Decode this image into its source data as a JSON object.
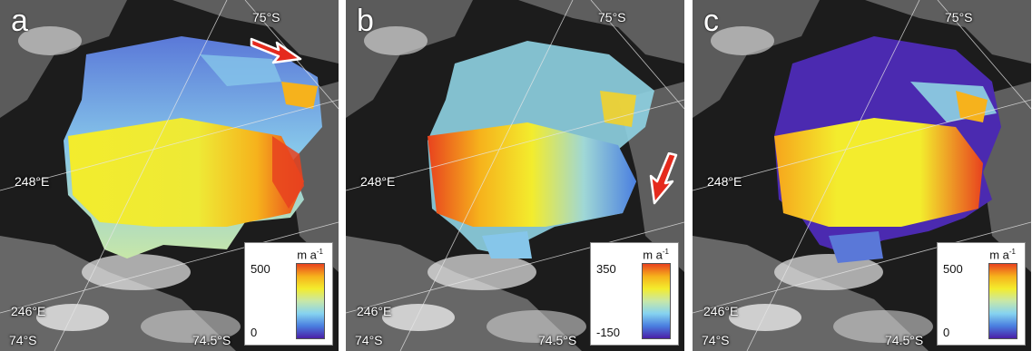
{
  "panels": [
    {
      "letter": "a",
      "lat_top": "75°S",
      "lon_mid": "248°E",
      "lon_low": "246°E",
      "lat_bottom_left": "74°S",
      "lat_bottom_right": "74.5°S",
      "legend": {
        "unit_base": "m a",
        "unit_exp": "-1",
        "max": "500",
        "min": "0"
      },
      "arrow": "arrow-right-icon"
    },
    {
      "letter": "b",
      "lat_top": "75°S",
      "lon_mid": "248°E",
      "lon_low": "246°E",
      "lat_bottom_left": "74°S",
      "lat_bottom_right": "74.5°S",
      "legend": {
        "unit_base": "m a",
        "unit_exp": "-1",
        "max": "350",
        "min": "-150"
      },
      "arrow": "arrow-down-left-icon"
    },
    {
      "letter": "c",
      "lat_top": "75°S",
      "lon_mid": "248°E",
      "lon_low": "246°E",
      "lat_bottom_left": "74°S",
      "lat_bottom_right": "74.5°S",
      "legend": {
        "unit_base": "m a",
        "unit_exp": "-1",
        "max": "500",
        "min": "0"
      }
    }
  ],
  "colors": {
    "colormap": [
      "#4b1fa8",
      "#4a7fe0",
      "#86d3f0",
      "#c7e7a8",
      "#f3ec2d",
      "#f6b21c",
      "#e8421e"
    ],
    "arrow": "#e52a1d"
  }
}
